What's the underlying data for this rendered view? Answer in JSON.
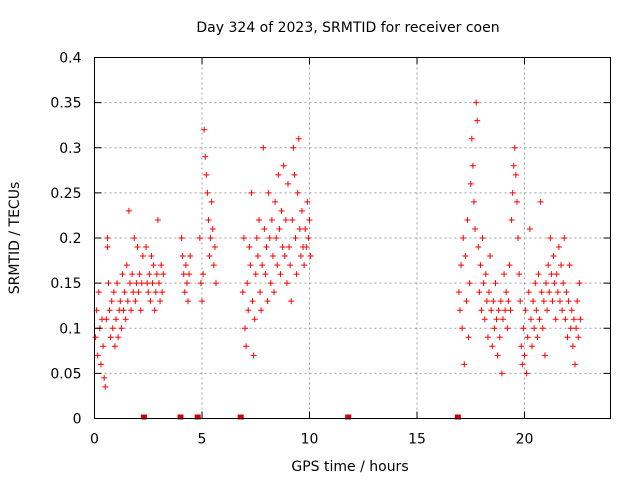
{
  "chart_data": {
    "type": "scatter",
    "title": "Day 324 of 2023, SRMTID for receiver coen",
    "xlabel": "GPS time / hours",
    "ylabel": "SRMTID / TECUs",
    "xlim": [
      0,
      24
    ],
    "ylim": [
      0,
      0.4
    ],
    "xticks": [
      0,
      5,
      10,
      15,
      20
    ],
    "yticks": [
      0,
      0.05,
      0.1,
      0.15,
      0.2,
      0.25,
      0.3,
      0.35,
      0.4
    ],
    "grid": true,
    "marker": "+",
    "color": "#ff0000",
    "gap_markers_x": [
      2.3,
      4.0,
      4.8,
      6.8,
      11.8,
      16.9
    ],
    "series": [
      {
        "name": "SRMTID",
        "points": [
          [
            0.05,
            0.09
          ],
          [
            0.1,
            0.12
          ],
          [
            0.15,
            0.07
          ],
          [
            0.2,
            0.14
          ],
          [
            0.25,
            0.1
          ],
          [
            0.3,
            0.06
          ],
          [
            0.35,
            0.11
          ],
          [
            0.4,
            0.08
          ],
          [
            0.45,
            0.045
          ],
          [
            0.5,
            0.035
          ],
          [
            0.55,
            0.11
          ],
          [
            0.6,
            0.19
          ],
          [
            0.6,
            0.2
          ],
          [
            0.65,
            0.15
          ],
          [
            0.7,
            0.12
          ],
          [
            0.75,
            0.09
          ],
          [
            0.8,
            0.13
          ],
          [
            0.85,
            0.1
          ],
          [
            0.9,
            0.14
          ],
          [
            0.95,
            0.08
          ],
          [
            1.0,
            0.11
          ],
          [
            1.05,
            0.15
          ],
          [
            1.1,
            0.09
          ],
          [
            1.15,
            0.12
          ],
          [
            1.2,
            0.13
          ],
          [
            1.25,
            0.1
          ],
          [
            1.3,
            0.16
          ],
          [
            1.35,
            0.12
          ],
          [
            1.4,
            0.14
          ],
          [
            1.45,
            0.11
          ],
          [
            1.5,
            0.17
          ],
          [
            1.55,
            0.13
          ],
          [
            1.6,
            0.23
          ],
          [
            1.65,
            0.15
          ],
          [
            1.7,
            0.12
          ],
          [
            1.75,
            0.16
          ],
          [
            1.8,
            0.14
          ],
          [
            1.85,
            0.2
          ],
          [
            1.9,
            0.13
          ],
          [
            1.95,
            0.15
          ],
          [
            2.0,
            0.19
          ],
          [
            2.05,
            0.14
          ],
          [
            2.1,
            0.16
          ],
          [
            2.15,
            0.12
          ],
          [
            2.2,
            0.15
          ],
          [
            2.25,
            0.18
          ],
          [
            2.4,
            0.19
          ],
          [
            2.45,
            0.15
          ],
          [
            2.5,
            0.14
          ],
          [
            2.55,
            0.16
          ],
          [
            2.6,
            0.13
          ],
          [
            2.65,
            0.18
          ],
          [
            2.7,
            0.15
          ],
          [
            2.75,
            0.17
          ],
          [
            2.8,
            0.12
          ],
          [
            2.85,
            0.14
          ],
          [
            2.9,
            0.16
          ],
          [
            2.95,
            0.22
          ],
          [
            3.0,
            0.15
          ],
          [
            3.05,
            0.13
          ],
          [
            3.1,
            0.17
          ],
          [
            3.15,
            0.14
          ],
          [
            3.2,
            0.16
          ],
          [
            4.05,
            0.2
          ],
          [
            4.1,
            0.18
          ],
          [
            4.15,
            0.16
          ],
          [
            4.2,
            0.14
          ],
          [
            4.25,
            0.17
          ],
          [
            4.3,
            0.15
          ],
          [
            4.35,
            0.13
          ],
          [
            4.4,
            0.16
          ],
          [
            4.45,
            0.18
          ],
          [
            4.9,
            0.2
          ],
          [
            4.95,
            0.15
          ],
          [
            5.0,
            0.13
          ],
          [
            5.05,
            0.16
          ],
          [
            5.1,
            0.32
          ],
          [
            5.15,
            0.29
          ],
          [
            5.2,
            0.27
          ],
          [
            5.25,
            0.25
          ],
          [
            5.3,
            0.22
          ],
          [
            5.35,
            0.18
          ],
          [
            5.4,
            0.2
          ],
          [
            5.45,
            0.24
          ],
          [
            5.5,
            0.21
          ],
          [
            5.55,
            0.17
          ],
          [
            5.6,
            0.19
          ],
          [
            5.65,
            0.15
          ],
          [
            6.9,
            0.14
          ],
          [
            6.95,
            0.2
          ],
          [
            7.0,
            0.1
          ],
          [
            7.05,
            0.08
          ],
          [
            7.1,
            0.15
          ],
          [
            7.15,
            0.12
          ],
          [
            7.2,
            0.19
          ],
          [
            7.25,
            0.17
          ],
          [
            7.3,
            0.25
          ],
          [
            7.35,
            0.13
          ],
          [
            7.4,
            0.07
          ],
          [
            7.45,
            0.11
          ],
          [
            7.5,
            0.16
          ],
          [
            7.55,
            0.2
          ],
          [
            7.6,
            0.18
          ],
          [
            7.65,
            0.22
          ],
          [
            7.7,
            0.14
          ],
          [
            7.75,
            0.12
          ],
          [
            7.8,
            0.17
          ],
          [
            7.85,
            0.3
          ],
          [
            7.9,
            0.21
          ],
          [
            7.95,
            0.16
          ],
          [
            8.0,
            0.19
          ],
          [
            8.05,
            0.13
          ],
          [
            8.1,
            0.25
          ],
          [
            8.15,
            0.2
          ],
          [
            8.2,
            0.15
          ],
          [
            8.25,
            0.22
          ],
          [
            8.3,
            0.18
          ],
          [
            8.35,
            0.14
          ],
          [
            8.4,
            0.24
          ],
          [
            8.45,
            0.2
          ],
          [
            8.5,
            0.17
          ],
          [
            8.55,
            0.27
          ],
          [
            8.6,
            0.21
          ],
          [
            8.65,
            0.16
          ],
          [
            8.7,
            0.23
          ],
          [
            8.75,
            0.19
          ],
          [
            8.8,
            0.28
          ],
          [
            8.85,
            0.18
          ],
          [
            8.9,
            0.22
          ],
          [
            8.95,
            0.15
          ],
          [
            9.0,
            0.26
          ],
          [
            9.05,
            0.19
          ],
          [
            9.1,
            0.17
          ],
          [
            9.15,
            0.13
          ],
          [
            9.2,
            0.22
          ],
          [
            9.25,
            0.3
          ],
          [
            9.3,
            0.27
          ],
          [
            9.35,
            0.2
          ],
          [
            9.4,
            0.16
          ],
          [
            9.45,
            0.25
          ],
          [
            9.5,
            0.31
          ],
          [
            9.55,
            0.21
          ],
          [
            9.6,
            0.18
          ],
          [
            9.65,
            0.23
          ],
          [
            9.7,
            0.19
          ],
          [
            9.75,
            0.17
          ],
          [
            9.8,
            0.21
          ],
          [
            9.85,
            0.19
          ],
          [
            9.9,
            0.24
          ],
          [
            9.95,
            0.2
          ],
          [
            10.0,
            0.22
          ],
          [
            10.05,
            0.18
          ],
          [
            16.95,
            0.14
          ],
          [
            17.0,
            0.12
          ],
          [
            17.05,
            0.17
          ],
          [
            17.1,
            0.1
          ],
          [
            17.15,
            0.2
          ],
          [
            17.2,
            0.06
          ],
          [
            17.25,
            0.18
          ],
          [
            17.3,
            0.13
          ],
          [
            17.35,
            0.22
          ],
          [
            17.4,
            0.09
          ],
          [
            17.45,
            0.15
          ],
          [
            17.5,
            0.26
          ],
          [
            17.55,
            0.31
          ],
          [
            17.6,
            0.28
          ],
          [
            17.65,
            0.24
          ],
          [
            17.7,
            0.21
          ],
          [
            17.75,
            0.35
          ],
          [
            17.8,
            0.33
          ],
          [
            17.85,
            0.19
          ],
          [
            17.9,
            0.14
          ],
          [
            17.95,
            0.17
          ],
          [
            18.0,
            0.12
          ],
          [
            18.05,
            0.2
          ],
          [
            18.1,
            0.15
          ],
          [
            18.15,
            0.11
          ],
          [
            18.2,
            0.16
          ],
          [
            18.25,
            0.13
          ],
          [
            18.3,
            0.09
          ],
          [
            18.35,
            0.14
          ],
          [
            18.4,
            0.18
          ],
          [
            18.45,
            0.12
          ],
          [
            18.5,
            0.08
          ],
          [
            18.55,
            0.13
          ],
          [
            18.6,
            0.1
          ],
          [
            18.65,
            0.15
          ],
          [
            18.7,
            0.11
          ],
          [
            18.75,
            0.07
          ],
          [
            18.8,
            0.12
          ],
          [
            18.85,
            0.09
          ],
          [
            18.9,
            0.13
          ],
          [
            18.95,
            0.05
          ],
          [
            19.0,
            0.11
          ],
          [
            19.05,
            0.16
          ],
          [
            19.1,
            0.12
          ],
          [
            19.15,
            0.14
          ],
          [
            19.2,
            0.1
          ],
          [
            19.25,
            0.13
          ],
          [
            19.3,
            0.17
          ],
          [
            19.35,
            0.12
          ],
          [
            19.4,
            0.22
          ],
          [
            19.45,
            0.25
          ],
          [
            19.5,
            0.28
          ],
          [
            19.55,
            0.3
          ],
          [
            19.6,
            0.27
          ],
          [
            19.65,
            0.24
          ],
          [
            19.7,
            0.2
          ],
          [
            19.75,
            0.16
          ],
          [
            19.8,
            0.13
          ],
          [
            19.85,
            0.08
          ],
          [
            19.9,
            0.06
          ],
          [
            19.95,
            0.1
          ],
          [
            20.0,
            0.07
          ],
          [
            20.05,
            0.12
          ],
          [
            20.1,
            0.05
          ],
          [
            20.15,
            0.09
          ],
          [
            20.2,
            0.14
          ],
          [
            20.25,
            0.21
          ],
          [
            20.3,
            0.11
          ],
          [
            20.35,
            0.08
          ],
          [
            20.4,
            0.13
          ],
          [
            20.45,
            0.1
          ],
          [
            20.5,
            0.15
          ],
          [
            20.55,
            0.12
          ],
          [
            20.6,
            0.09
          ],
          [
            20.65,
            0.16
          ],
          [
            20.7,
            0.11
          ],
          [
            20.75,
            0.24
          ],
          [
            20.8,
            0.14
          ],
          [
            20.85,
            0.1
          ],
          [
            20.9,
            0.13
          ],
          [
            20.95,
            0.07
          ],
          [
            21.0,
            0.15
          ],
          [
            21.05,
            0.12
          ],
          [
            21.1,
            0.17
          ],
          [
            21.15,
            0.14
          ],
          [
            21.2,
            0.2
          ],
          [
            21.25,
            0.16
          ],
          [
            21.3,
            0.13
          ],
          [
            21.35,
            0.18
          ],
          [
            21.4,
            0.15
          ],
          [
            21.45,
            0.11
          ],
          [
            21.5,
            0.16
          ],
          [
            21.55,
            0.14
          ],
          [
            21.6,
            0.19
          ],
          [
            21.65,
            0.13
          ],
          [
            21.7,
            0.17
          ],
          [
            21.75,
            0.12
          ],
          [
            21.8,
            0.15
          ],
          [
            21.85,
            0.2
          ],
          [
            21.9,
            0.11
          ],
          [
            21.95,
            0.14
          ],
          [
            22.0,
            0.09
          ],
          [
            22.05,
            0.13
          ],
          [
            22.1,
            0.17
          ],
          [
            22.15,
            0.1
          ],
          [
            22.2,
            0.12
          ],
          [
            22.25,
            0.08
          ],
          [
            22.3,
            0.11
          ],
          [
            22.35,
            0.06
          ],
          [
            22.4,
            0.1
          ],
          [
            22.45,
            0.13
          ],
          [
            22.5,
            0.09
          ],
          [
            22.55,
            0.15
          ],
          [
            22.6,
            0.11
          ]
        ]
      }
    ]
  }
}
